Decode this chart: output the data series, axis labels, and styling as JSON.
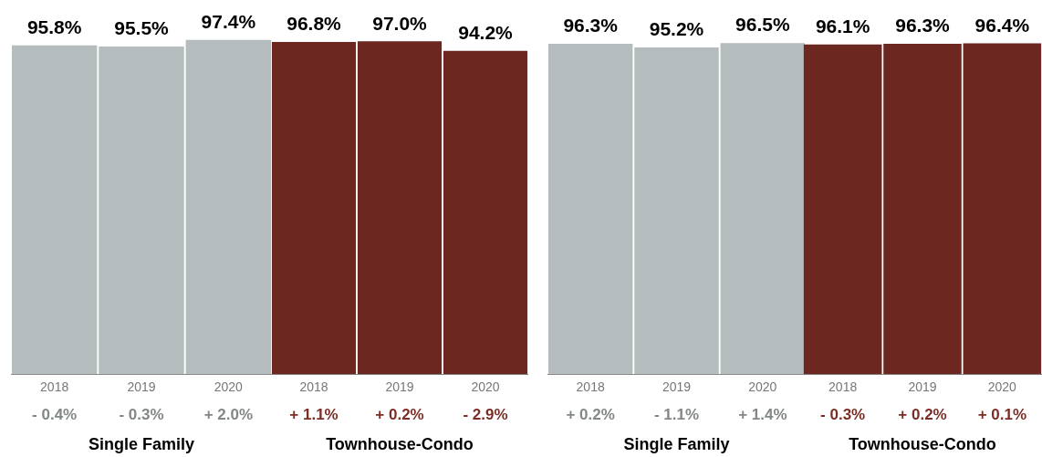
{
  "chart_data": [
    {
      "type": "bar",
      "categories": [
        "2018",
        "2019",
        "2020"
      ],
      "values": [
        95.8,
        95.5,
        97.4
      ],
      "value_labels": [
        "95.8%",
        "95.5%",
        "97.4%"
      ],
      "color": "#b5bcbd",
      "tick_labels": "x",
      "xlabel": "Single Family",
      "annotations": [
        "- 0.4%",
        "- 0.3%",
        "+ 2.0%"
      ]
    },
    {
      "type": "bar",
      "categories": [
        "2018",
        "2019",
        "2020"
      ],
      "values": [
        96.8,
        97.0,
        94.2
      ],
      "value_labels": [
        "96.8%",
        "97.0%",
        "94.2%"
      ],
      "color": "#6b2720",
      "tick_labels": "x",
      "xlabel": "Townhouse-Condo",
      "annotations": [
        "+ 1.1%",
        "+ 0.2%",
        "- 2.9%"
      ]
    },
    {
      "type": "bar",
      "categories": [
        "2018",
        "2019",
        "2020"
      ],
      "values": [
        96.3,
        95.2,
        96.5
      ],
      "value_labels": [
        "96.3%",
        "95.2%",
        "96.5%"
      ],
      "color": "#b5bcbd",
      "tick_labels": "x",
      "xlabel": "Single Family",
      "annotations": [
        "+ 0.2%",
        "- 1.1%",
        "+ 1.4%"
      ]
    },
    {
      "type": "bar",
      "categories": [
        "2018",
        "2019",
        "2020"
      ],
      "values": [
        96.1,
        96.3,
        96.4
      ],
      "value_labels": [
        "96.1%",
        "96.3%",
        "96.4%"
      ],
      "color": "#6b2720",
      "tick_labels": "x",
      "xlabel": "Townhouse-Condo",
      "annotations": [
        "- 0.3%",
        "+ 0.2%",
        "+ 0.1%"
      ]
    }
  ]
}
